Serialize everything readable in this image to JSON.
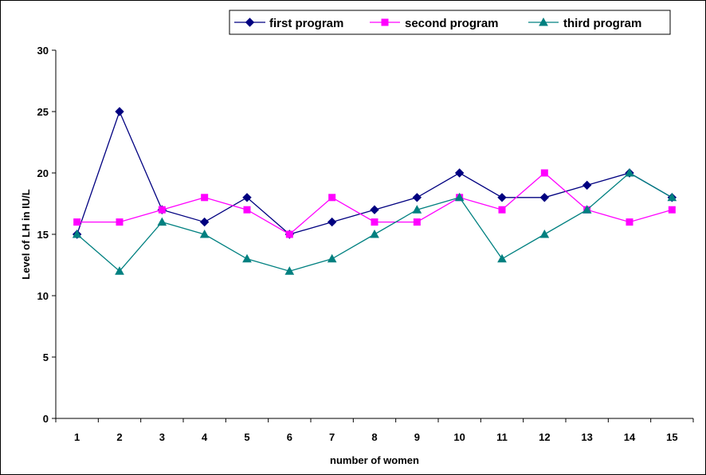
{
  "chart_data": {
    "type": "line",
    "xlabel": "number of women",
    "ylabel": "Level of LH in IU/L",
    "categories": [
      "1",
      "2",
      "3",
      "4",
      "5",
      "6",
      "7",
      "8",
      "9",
      "10",
      "11",
      "12",
      "13",
      "14",
      "15"
    ],
    "ylim": [
      0,
      30
    ],
    "yticks": [
      "0",
      "5",
      "10",
      "15",
      "20",
      "25",
      "30"
    ],
    "grid": false,
    "legend": "top-right",
    "series": [
      {
        "name": "first program",
        "color": "#000080",
        "marker": "diamond",
        "values": [
          15,
          25,
          17,
          16,
          18,
          15,
          16,
          17,
          18,
          20,
          18,
          18,
          19,
          20,
          18
        ]
      },
      {
        "name": "second program",
        "color": "#FF00FF",
        "marker": "square",
        "values": [
          16,
          16,
          17,
          18,
          17,
          15,
          18,
          16,
          16,
          18,
          17,
          20,
          17,
          16,
          17
        ]
      },
      {
        "name": "third program",
        "color": "#008080",
        "marker": "triangle",
        "values": [
          15,
          12,
          16,
          15,
          13,
          12,
          13,
          15,
          17,
          18,
          13,
          15,
          17,
          20,
          18
        ]
      }
    ]
  }
}
